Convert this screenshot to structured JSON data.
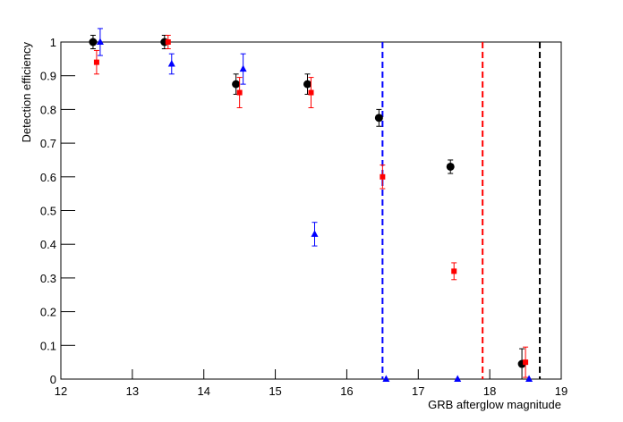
{
  "chart_data": {
    "type": "scatter",
    "x_label": "GRB afterglow magnitude",
    "y_label": "Detection efficiency",
    "xlim": [
      12,
      19
    ],
    "xticks": [
      12,
      13,
      14,
      15,
      16,
      17,
      18,
      19
    ],
    "ylim": [
      0,
      1
    ],
    "yticks": [
      0,
      0.1,
      0.2,
      0.3,
      0.4,
      0.5,
      0.6,
      0.7,
      0.8,
      0.9,
      1
    ],
    "series": [
      {
        "color": "#000000",
        "marker": "circle",
        "x": [
          12.45,
          13.45,
          14.45,
          15.45,
          16.45,
          17.45,
          18.45
        ],
        "values": [
          1.0,
          1.0,
          0.875,
          0.875,
          0.775,
          0.63,
          0.045
        ],
        "errors": [
          0.02,
          0.02,
          0.03,
          0.03,
          0.025,
          0.02,
          0.045
        ]
      },
      {
        "color": "#ff0000",
        "marker": "square",
        "x": [
          12.5,
          13.5,
          14.5,
          15.5,
          16.5,
          17.5,
          18.5
        ],
        "values": [
          0.94,
          1.0,
          0.85,
          0.85,
          0.6,
          0.32,
          0.05
        ],
        "errors": [
          0.035,
          0.02,
          0.045,
          0.045,
          0.035,
          0.025,
          0.045
        ]
      },
      {
        "color": "#0000ff",
        "marker": "triangle",
        "x": [
          12.55,
          13.55,
          14.55,
          15.55,
          16.55,
          17.55,
          18.55
        ],
        "values": [
          1.0,
          0.935,
          0.92,
          0.43,
          0,
          0,
          0
        ],
        "errors": [
          0.04,
          0.03,
          0.045,
          0.035,
          0,
          0,
          0
        ]
      }
    ],
    "vlines": [
      {
        "x": 16.5,
        "color": "#0000ff"
      },
      {
        "x": 17.9,
        "color": "#ff0000"
      },
      {
        "x": 18.7,
        "color": "#000000"
      }
    ]
  }
}
